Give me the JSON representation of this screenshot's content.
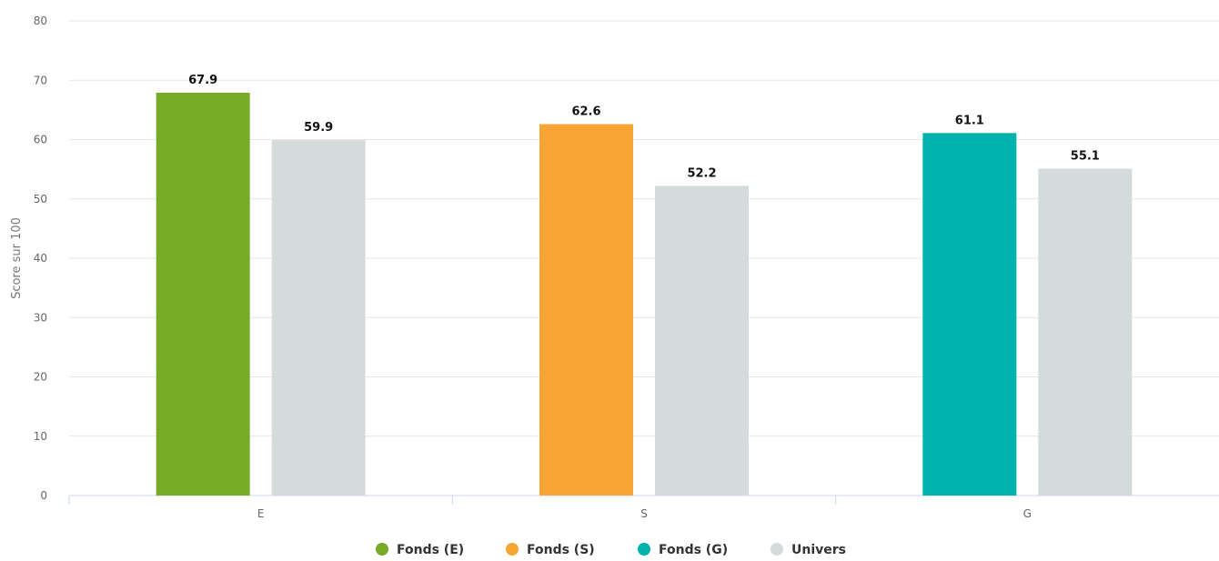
{
  "chart_data": {
    "type": "bar",
    "categories": [
      "E",
      "S",
      "G"
    ],
    "ylabel": "Score sur 100",
    "ylim": [
      0,
      80
    ],
    "yticks": [
      0,
      10,
      20,
      30,
      40,
      50,
      60,
      70,
      80
    ],
    "grid": true,
    "legend_position": "bottom",
    "bars": [
      {
        "category": "E",
        "series": "Fonds (E)",
        "value": 67.9,
        "label": "67.9",
        "color": "#76ac27"
      },
      {
        "category": "E",
        "series": "Univers",
        "value": 59.9,
        "label": "59.9",
        "color": "#d5dbdb"
      },
      {
        "category": "S",
        "series": "Fonds (S)",
        "value": 62.6,
        "label": "62.6",
        "color": "#f7a535"
      },
      {
        "category": "S",
        "series": "Univers",
        "value": 52.2,
        "label": "52.2",
        "color": "#d5dbdb"
      },
      {
        "category": "G",
        "series": "Fonds (G)",
        "value": 61.1,
        "label": "61.1",
        "color": "#00b2ad"
      },
      {
        "category": "G",
        "series": "Univers",
        "value": 55.1,
        "label": "55.1",
        "color": "#d5dbdb"
      }
    ],
    "legend": [
      {
        "name": "Fonds (E)",
        "color": "#76ac27"
      },
      {
        "name": "Fonds (S)",
        "color": "#f7a535"
      },
      {
        "name": "Fonds (G)",
        "color": "#00b2ad"
      },
      {
        "name": "Univers",
        "color": "#d5dbdb"
      }
    ]
  }
}
